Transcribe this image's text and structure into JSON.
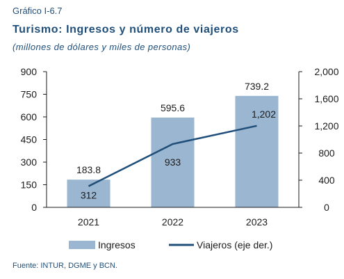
{
  "header": {
    "kicker": "Gráfico I-6.7",
    "title": "Turismo: Ingresos y número de viajeros",
    "subtitle": "(millones de dólares y miles de personas)"
  },
  "footer": {
    "source": "Fuente: INTUR, DGME y BCN."
  },
  "colors": {
    "bar": "#9ab6d1",
    "line": "#1f4e79",
    "axis": "#1a1a1a"
  },
  "chart_data": {
    "type": "bar",
    "categories": [
      "2021",
      "2022",
      "2023"
    ],
    "series": [
      {
        "name": "Ingresos",
        "type": "bar",
        "axis": "left",
        "values": [
          183.8,
          595.6,
          739.2
        ],
        "labels": [
          "183.8",
          "595.6",
          "739.2"
        ]
      },
      {
        "name": "Viajeros (eje der.)",
        "type": "line",
        "axis": "right",
        "values": [
          312,
          933,
          1202
        ],
        "labels": [
          "312",
          "933",
          "1,202"
        ]
      }
    ],
    "y_left": {
      "min": 0,
      "max": 900,
      "ticks": [
        0,
        150,
        300,
        450,
        600,
        750,
        900
      ],
      "tick_labels": [
        "0",
        "150",
        "300",
        "450",
        "600",
        "750",
        "900"
      ]
    },
    "y_right": {
      "min": 0,
      "max": 2000,
      "ticks": [
        0,
        400,
        800,
        1200,
        1600,
        2000
      ],
      "tick_labels": [
        "0",
        "400",
        "800",
        "1,200",
        "1,600",
        "2,000"
      ]
    },
    "grid": false,
    "legend_position": "bottom"
  }
}
